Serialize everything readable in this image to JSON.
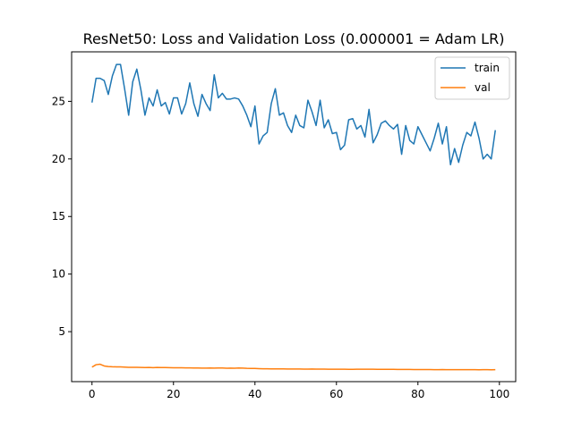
{
  "chart_data": {
    "type": "line",
    "title": "ResNet50: Loss and Validation Loss (0.000001 = Adam LR)",
    "xlabel": "",
    "ylabel": "",
    "xlim": [
      -5,
      104
    ],
    "ylim": [
      0.66,
      29.3
    ],
    "xticks": [
      0,
      20,
      40,
      60,
      80,
      100
    ],
    "yticks": [
      5,
      10,
      15,
      20,
      25
    ],
    "grid": false,
    "legend_position": "top-right",
    "x": [
      0,
      1,
      2,
      3,
      4,
      5,
      6,
      7,
      8,
      9,
      10,
      11,
      12,
      13,
      14,
      15,
      16,
      17,
      18,
      19,
      20,
      21,
      22,
      23,
      24,
      25,
      26,
      27,
      28,
      29,
      30,
      31,
      32,
      33,
      34,
      35,
      36,
      37,
      38,
      39,
      40,
      41,
      42,
      43,
      44,
      45,
      46,
      47,
      48,
      49,
      50,
      51,
      52,
      53,
      54,
      55,
      56,
      57,
      58,
      59,
      60,
      61,
      62,
      63,
      64,
      65,
      66,
      67,
      68,
      69,
      70,
      71,
      72,
      73,
      74,
      75,
      76,
      77,
      78,
      79,
      80,
      81,
      82,
      83,
      84,
      85,
      86,
      87,
      88,
      89,
      90,
      91,
      92,
      93,
      94,
      95,
      96,
      97,
      98,
      99
    ],
    "series": [
      {
        "name": "train",
        "color": "#1f77b4",
        "values": [
          24.9,
          27.0,
          27.0,
          26.8,
          25.6,
          27.2,
          28.2,
          28.2,
          26.1,
          23.8,
          26.7,
          27.8,
          26.0,
          23.8,
          25.3,
          24.6,
          26.0,
          24.6,
          24.9,
          23.9,
          25.3,
          25.3,
          23.9,
          24.8,
          26.6,
          24.8,
          23.7,
          25.6,
          24.8,
          24.2,
          27.3,
          25.3,
          25.7,
          25.2,
          25.2,
          25.3,
          25.2,
          24.6,
          23.8,
          22.8,
          24.6,
          21.3,
          22.0,
          22.3,
          24.8,
          26.1,
          23.8,
          24.0,
          22.9,
          22.3,
          23.8,
          22.9,
          22.7,
          25.1,
          24.1,
          22.9,
          25.1,
          22.7,
          23.4,
          22.2,
          22.3,
          20.8,
          21.2,
          23.4,
          23.5,
          22.6,
          22.9,
          21.9,
          24.3,
          21.4,
          22.1,
          23.1,
          23.3,
          22.9,
          22.6,
          23.0,
          20.4,
          22.9,
          21.6,
          21.3,
          22.8,
          22.1,
          21.4,
          20.7,
          21.8,
          23.1,
          21.3,
          22.8,
          19.5,
          20.9,
          19.7,
          21.2,
          22.3,
          22.0,
          23.2,
          21.8,
          20.0,
          20.4,
          20.0,
          22.5
        ]
      },
      {
        "name": "val",
        "color": "#ff7f0e",
        "values": [
          1.92,
          2.13,
          2.17,
          2.02,
          1.97,
          1.95,
          1.94,
          1.94,
          1.92,
          1.9,
          1.9,
          1.9,
          1.89,
          1.88,
          1.89,
          1.87,
          1.89,
          1.88,
          1.88,
          1.87,
          1.86,
          1.86,
          1.86,
          1.85,
          1.85,
          1.84,
          1.84,
          1.83,
          1.83,
          1.84,
          1.83,
          1.84,
          1.84,
          1.82,
          1.83,
          1.82,
          1.84,
          1.83,
          1.81,
          1.8,
          1.8,
          1.79,
          1.78,
          1.78,
          1.77,
          1.77,
          1.77,
          1.77,
          1.76,
          1.76,
          1.76,
          1.76,
          1.75,
          1.75,
          1.76,
          1.75,
          1.75,
          1.75,
          1.74,
          1.74,
          1.74,
          1.74,
          1.74,
          1.73,
          1.73,
          1.74,
          1.74,
          1.74,
          1.74,
          1.74,
          1.73,
          1.73,
          1.73,
          1.73,
          1.73,
          1.72,
          1.72,
          1.72,
          1.72,
          1.71,
          1.71,
          1.71,
          1.71,
          1.71,
          1.7,
          1.7,
          1.71,
          1.7,
          1.7,
          1.7,
          1.7,
          1.7,
          1.7,
          1.7,
          1.7,
          1.69,
          1.7,
          1.7,
          1.69,
          1.7
        ]
      }
    ]
  }
}
